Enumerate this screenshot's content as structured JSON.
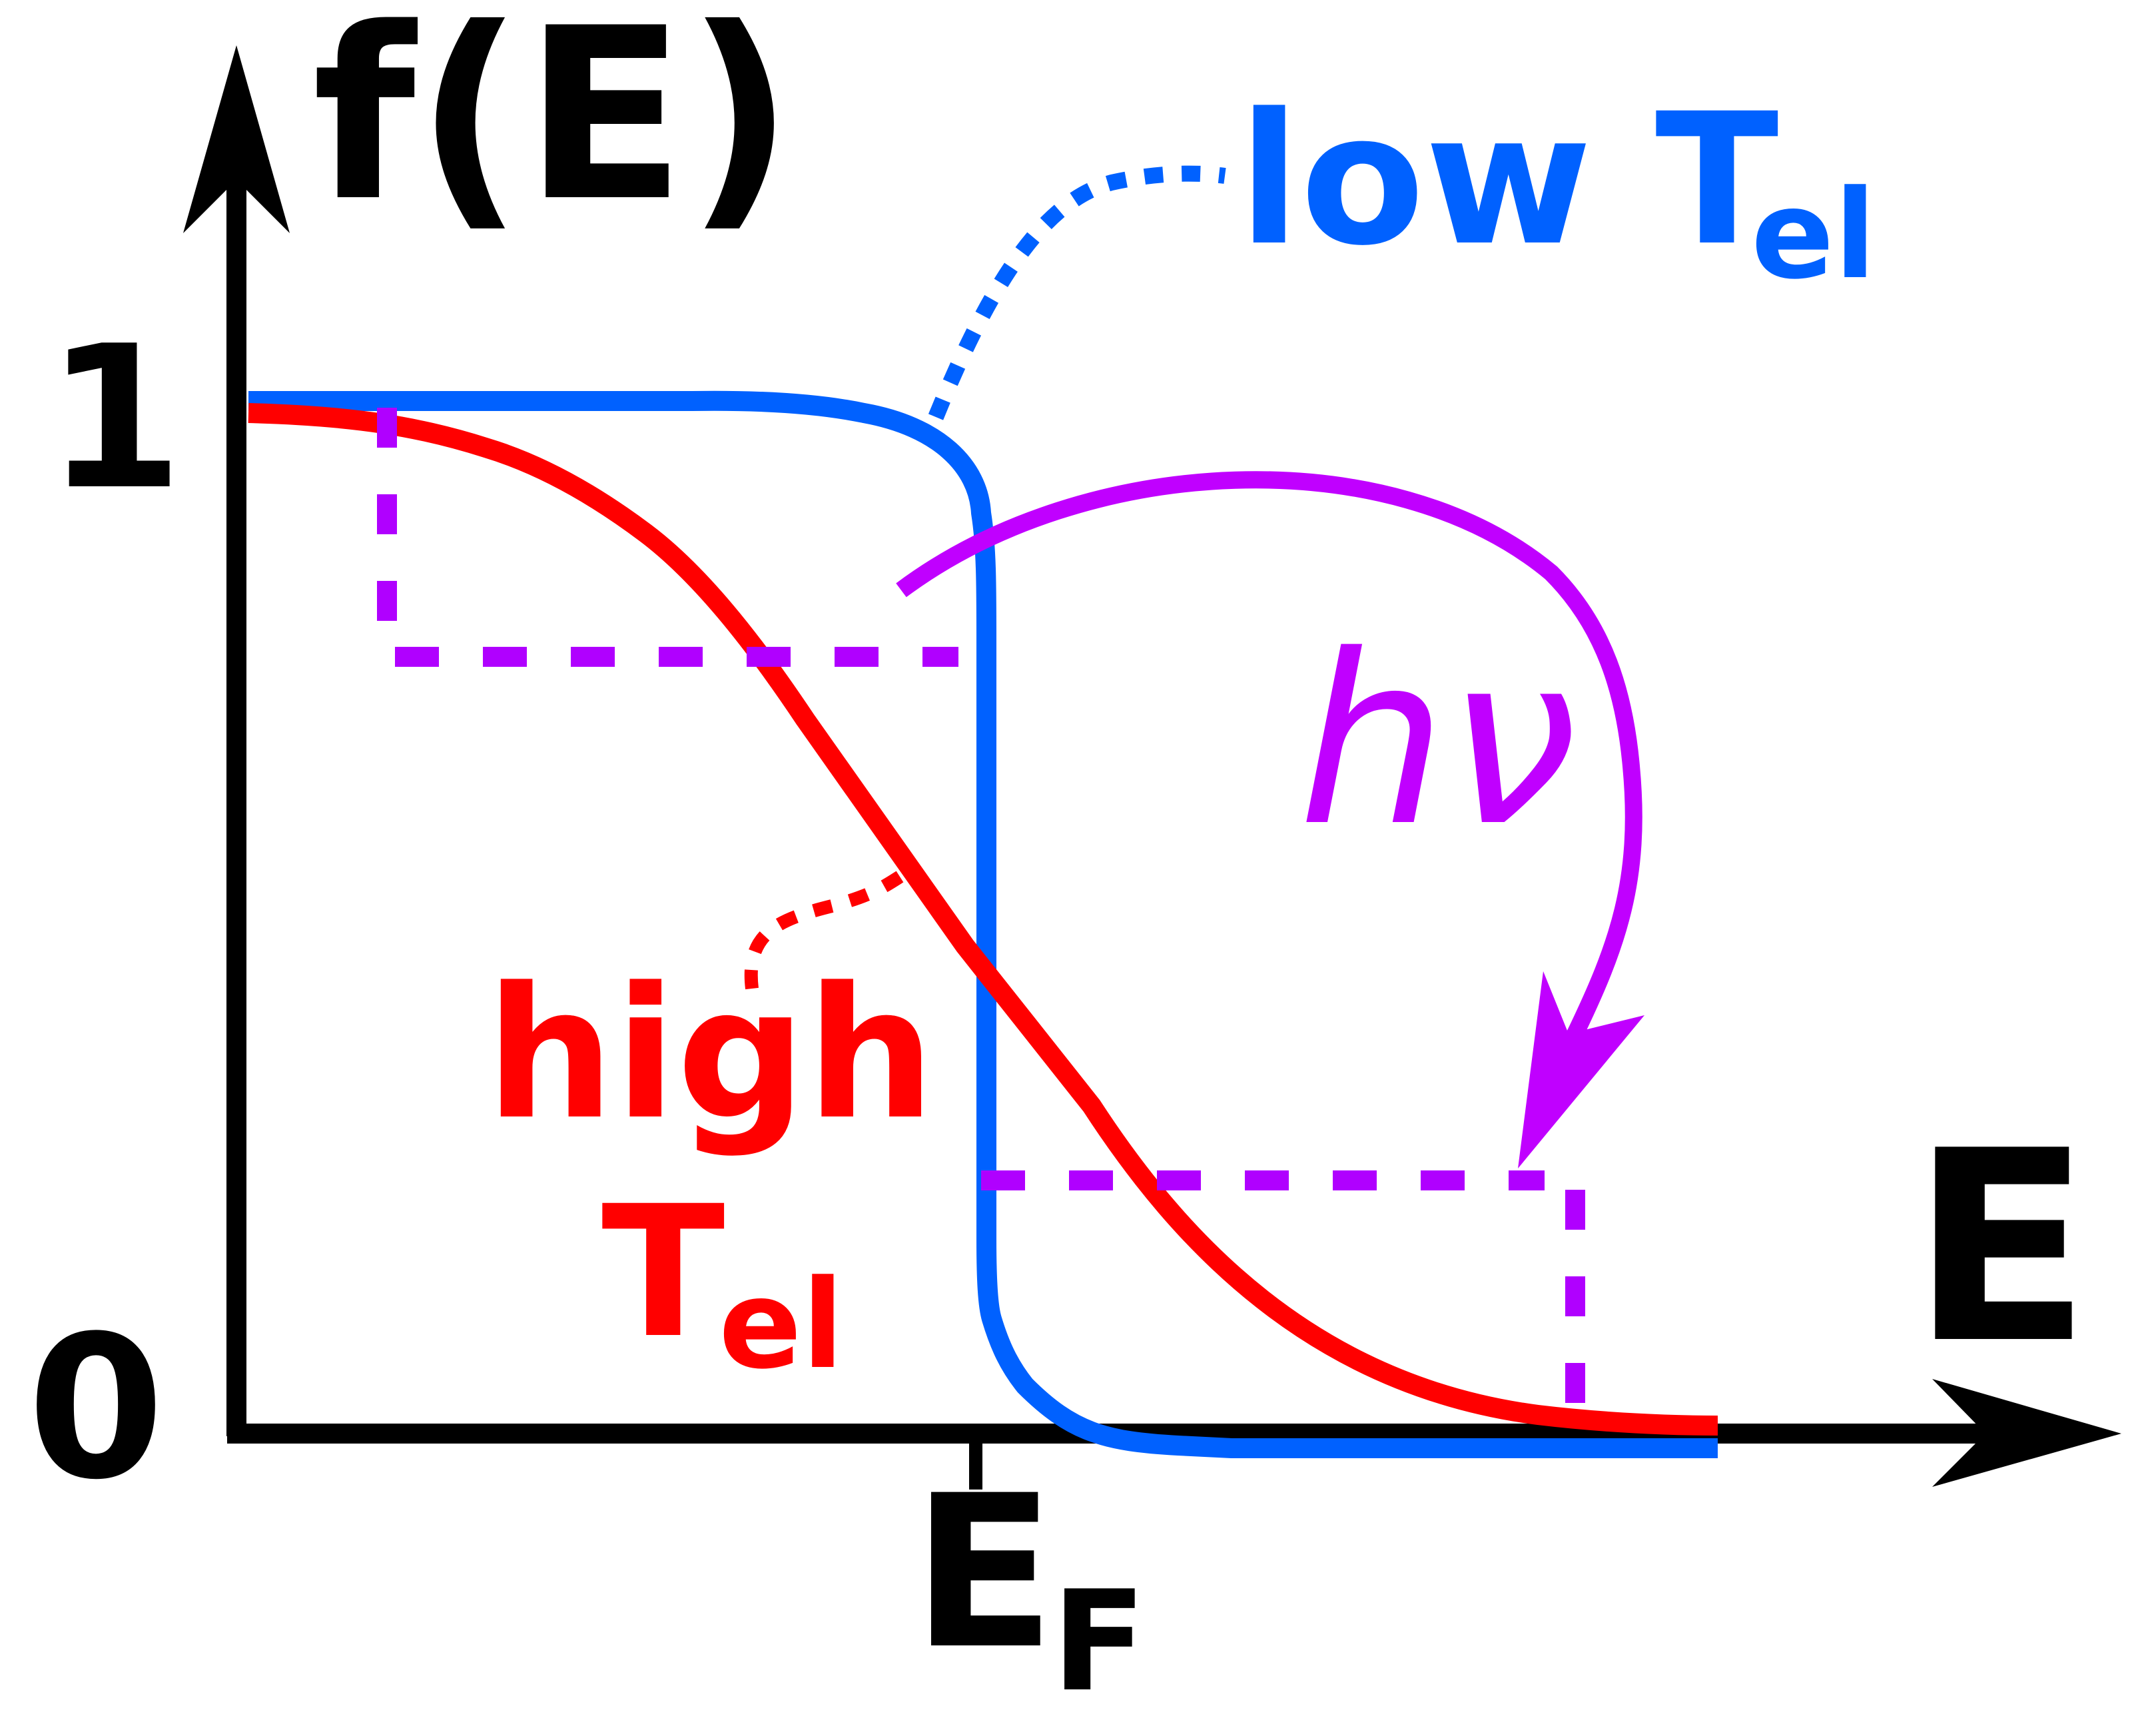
{
  "labels": {
    "y_axis": "f(E)",
    "x_axis": "E",
    "y_one": "1",
    "y_zero": "0",
    "fermi_main": "E",
    "fermi_sub": "F",
    "low_word": "low T",
    "low_sub": "el",
    "high_word": "high",
    "high_T": "T",
    "high_sub": "el",
    "photon": "hν"
  },
  "colors": {
    "axis": "#000000",
    "low_temperature": "#0061ff",
    "high_temperature": "#ff0000",
    "photon": "#c000ff",
    "excitation_guides": "#b000ff"
  }
}
